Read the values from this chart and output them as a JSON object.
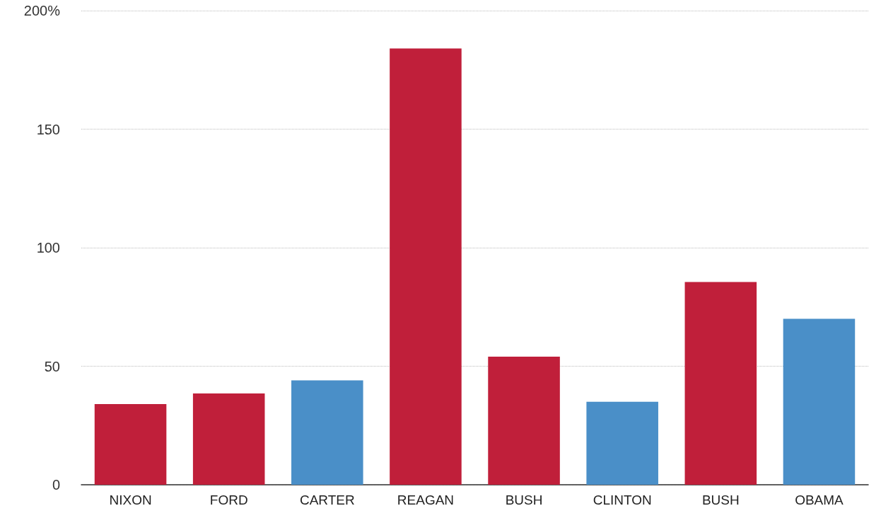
{
  "chart_data": {
    "type": "bar",
    "categories": [
      "NIXON",
      "FORD",
      "CARTER",
      "REAGAN",
      "BUSH",
      "CLINTON",
      "BUSH",
      "OBAMA"
    ],
    "values": [
      34,
      38.5,
      44,
      184,
      54,
      35,
      85.5,
      70
    ],
    "colors": [
      "#c01f3a",
      "#c01f3a",
      "#4a8fc8",
      "#c01f3a",
      "#c01f3a",
      "#4a8fc8",
      "#c01f3a",
      "#4a8fc8"
    ],
    "ylim": [
      0,
      200
    ],
    "yticks": [
      0,
      50,
      100,
      150,
      {
        "value": 200,
        "label": "200%"
      }
    ],
    "grid": "y"
  }
}
